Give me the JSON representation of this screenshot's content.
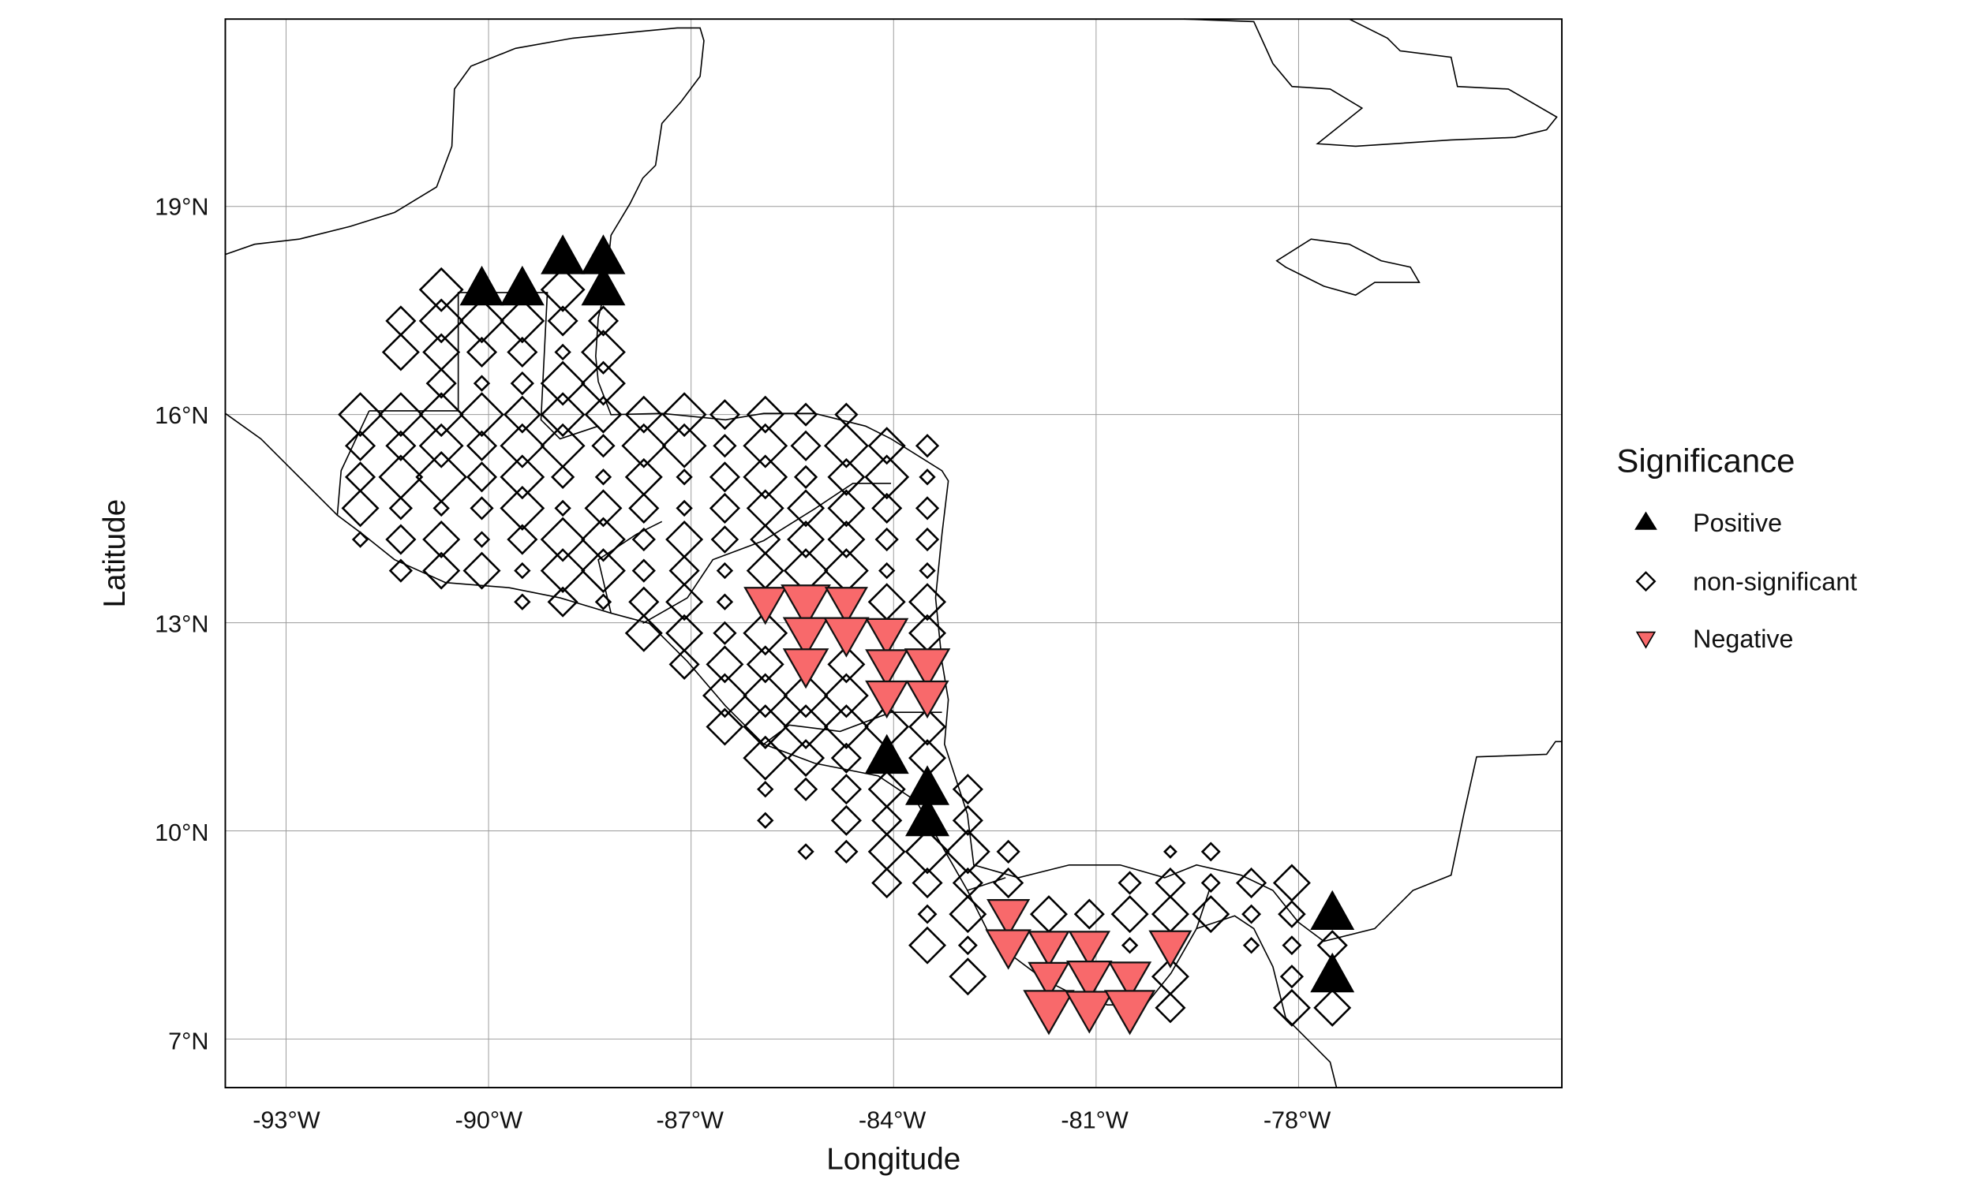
{
  "chart_data": {
    "type": "scatter",
    "title": "",
    "xlabel": "Longitude",
    "ylabel": "Latitude",
    "xlim": [
      -93.9,
      -74.1
    ],
    "ylim": [
      6.3,
      21.7
    ],
    "grid": true,
    "x_ticks": [
      -93,
      -90,
      -87,
      -84,
      -81,
      -78
    ],
    "y_ticks": [
      7,
      10,
      13,
      16,
      19
    ],
    "x_tick_labels": [
      "-93°W",
      "-90°W",
      "-87°W",
      "-84°W",
      "-81°W",
      "-78°W"
    ],
    "y_tick_labels": [
      "7°N",
      "10°N",
      "13°N",
      "16°N",
      "19°N"
    ],
    "legend": {
      "title": "Significance",
      "placement": "right",
      "entries": [
        {
          "key": "P",
          "label": "Positive",
          "color": "#000000",
          "shape": "triangle-up"
        },
        {
          "key": "N",
          "label": "non-significant",
          "color": "#ffffff",
          "shape": "diamond-open"
        },
        {
          "key": "X",
          "label": "Negative",
          "color": "#F8696B",
          "shape": "triangle-down"
        }
      ]
    },
    "point_grid": {
      "lon_start": -91.9,
      "lon_step": 0.6,
      "lat_start": 16.0,
      "lat_step": 0.45
    },
    "point_fields": [
      "lon_index",
      "lat_index",
      "significance",
      "magnitude"
    ],
    "points": [
      [
        2,
        4,
        "N",
        3
      ],
      [
        5,
        4,
        "N",
        3
      ],
      [
        1,
        3,
        "N",
        2
      ],
      [
        2,
        3,
        "N",
        3
      ],
      [
        3,
        3,
        "N",
        3
      ],
      [
        4,
        3,
        "N",
        3
      ],
      [
        5,
        3,
        "N",
        2
      ],
      [
        6,
        3,
        "N",
        2
      ],
      [
        1,
        2,
        "N",
        2.5
      ],
      [
        2,
        2,
        "N",
        2.5
      ],
      [
        3,
        2,
        "N",
        2
      ],
      [
        4,
        2,
        "N",
        2
      ],
      [
        5,
        2,
        "N",
        1
      ],
      [
        6,
        2,
        "N",
        3
      ],
      [
        2,
        1,
        "N",
        2
      ],
      [
        3,
        1,
        "N",
        1
      ],
      [
        4,
        1,
        "N",
        1.5
      ],
      [
        5,
        1,
        "N",
        3
      ],
      [
        6,
        1,
        "N",
        3
      ],
      [
        0,
        0,
        "N",
        3
      ],
      [
        1,
        0,
        "N",
        3
      ],
      [
        2,
        0,
        "N",
        3
      ],
      [
        3,
        0,
        "N",
        3
      ],
      [
        4,
        0,
        "N",
        2.5
      ],
      [
        5,
        0,
        "N",
        3
      ],
      [
        6,
        0,
        "N",
        2.5
      ],
      [
        7,
        0,
        "N",
        2.5
      ],
      [
        8,
        0,
        "N",
        3
      ],
      [
        9,
        0,
        "N",
        2
      ],
      [
        10,
        0,
        "N",
        2.5
      ],
      [
        11,
        0,
        "N",
        1.5
      ],
      [
        12,
        0,
        "N",
        1.5
      ],
      [
        0,
        -1,
        "N",
        2
      ],
      [
        1,
        -1,
        "N",
        2
      ],
      [
        2,
        -1,
        "N",
        3
      ],
      [
        3,
        -1,
        "N",
        2
      ],
      [
        4,
        -1,
        "N",
        3
      ],
      [
        5,
        -1,
        "N",
        3
      ],
      [
        6,
        -1,
        "N",
        1.5
      ],
      [
        7,
        -1,
        "N",
        3
      ],
      [
        8,
        -1,
        "N",
        3
      ],
      [
        9,
        -1,
        "N",
        1.5
      ],
      [
        10,
        -1,
        "N",
        3
      ],
      [
        11,
        -1,
        "N",
        2
      ],
      [
        12,
        -1,
        "N",
        3
      ],
      [
        13,
        -1,
        "N",
        2.5
      ],
      [
        14,
        -1,
        "N",
        1.5
      ],
      [
        0,
        -2,
        "N",
        2
      ],
      [
        1,
        -2,
        "N",
        3
      ],
      [
        2,
        -2,
        "N",
        3.5
      ],
      [
        3,
        -2,
        "N",
        2
      ],
      [
        4,
        -2,
        "N",
        3
      ],
      [
        5,
        -2,
        "N",
        1.5
      ],
      [
        6,
        -2,
        "N",
        1
      ],
      [
        7,
        -2,
        "N",
        2.5
      ],
      [
        8,
        -2,
        "N",
        1
      ],
      [
        9,
        -2,
        "N",
        2
      ],
      [
        10,
        -2,
        "N",
        3
      ],
      [
        11,
        -2,
        "N",
        1.5
      ],
      [
        12,
        -2,
        "N",
        2.5
      ],
      [
        13,
        -2,
        "N",
        3
      ],
      [
        14,
        -2,
        "N",
        1
      ],
      [
        0,
        -3,
        "N",
        2.5
      ],
      [
        1,
        -3,
        "N",
        1.5
      ],
      [
        2,
        -3,
        "N",
        1
      ],
      [
        3,
        -3,
        "N",
        1.5
      ],
      [
        4,
        -3,
        "N",
        3
      ],
      [
        5,
        -3,
        "N",
        1
      ],
      [
        6,
        -3,
        "N",
        2.5
      ],
      [
        7,
        -3,
        "N",
        2
      ],
      [
        8,
        -3,
        "N",
        1
      ],
      [
        9,
        -3,
        "N",
        2
      ],
      [
        10,
        -3,
        "N",
        2.5
      ],
      [
        11,
        -3,
        "N",
        2.5
      ],
      [
        12,
        -3,
        "N",
        2.5
      ],
      [
        13,
        -3,
        "N",
        2
      ],
      [
        14,
        -3,
        "N",
        1.5
      ],
      [
        0,
        -4,
        "N",
        1
      ],
      [
        1,
        -4,
        "N",
        2
      ],
      [
        2,
        -4,
        "N",
        2.5
      ],
      [
        3,
        -4,
        "N",
        1
      ],
      [
        4,
        -4,
        "N",
        2
      ],
      [
        5,
        -4,
        "N",
        3
      ],
      [
        6,
        -4,
        "N",
        3
      ],
      [
        7,
        -4,
        "N",
        1.5
      ],
      [
        8,
        -4,
        "N",
        2.5
      ],
      [
        9,
        -4,
        "N",
        1.8
      ],
      [
        10,
        -4,
        "N",
        2
      ],
      [
        11,
        -4,
        "N",
        2.5
      ],
      [
        12,
        -4,
        "N",
        2.5
      ],
      [
        13,
        -4,
        "N",
        1.5
      ],
      [
        14,
        -4,
        "N",
        1.5
      ],
      [
        1,
        -5,
        "N",
        1.5
      ],
      [
        2,
        -5,
        "N",
        2.5
      ],
      [
        3,
        -5,
        "N",
        2.5
      ],
      [
        4,
        -5,
        "N",
        1
      ],
      [
        5,
        -5,
        "N",
        3
      ],
      [
        6,
        -5,
        "N",
        3
      ],
      [
        7,
        -5,
        "N",
        1.5
      ],
      [
        8,
        -5,
        "N",
        2
      ],
      [
        9,
        -5,
        "N",
        1
      ],
      [
        10,
        -5,
        "N",
        2.5
      ],
      [
        11,
        -5,
        "N",
        3
      ],
      [
        12,
        -5,
        "N",
        3
      ],
      [
        13,
        -5,
        "N",
        1
      ],
      [
        14,
        -5,
        "N",
        1
      ],
      [
        4,
        -6,
        "N",
        1
      ],
      [
        5,
        -6,
        "N",
        2
      ],
      [
        6,
        -6,
        "N",
        1
      ],
      [
        7,
        -6,
        "N",
        2
      ],
      [
        8,
        -6,
        "N",
        2.5
      ],
      [
        9,
        -6,
        "N",
        1
      ],
      [
        13,
        -6,
        "N",
        2.5
      ],
      [
        14,
        -6,
        "N",
        2.5
      ],
      [
        7,
        -7,
        "N",
        2.5
      ],
      [
        8,
        -7,
        "N",
        2.5
      ],
      [
        9,
        -7,
        "N",
        1.5
      ],
      [
        10,
        -7,
        "N",
        3
      ],
      [
        14,
        -7,
        "N",
        2.5
      ],
      [
        8,
        -8,
        "N",
        2
      ],
      [
        9,
        -8,
        "N",
        2.5
      ],
      [
        10,
        -8,
        "N",
        2.5
      ],
      [
        12,
        -8,
        "N",
        2.5
      ],
      [
        9,
        -9,
        "N",
        3
      ],
      [
        10,
        -9,
        "N",
        3
      ],
      [
        11,
        -9,
        "N",
        3
      ],
      [
        12,
        -9,
        "N",
        3
      ],
      [
        9,
        -10,
        "N",
        2.5
      ],
      [
        10,
        -10,
        "N",
        3
      ],
      [
        11,
        -10,
        "N",
        3
      ],
      [
        12,
        -10,
        "N",
        3
      ],
      [
        13,
        -10,
        "N",
        3
      ],
      [
        14,
        -10,
        "N",
        2.5
      ],
      [
        10,
        -11,
        "N",
        3
      ],
      [
        11,
        -11,
        "N",
        2.5
      ],
      [
        12,
        -11,
        "N",
        2
      ],
      [
        14,
        -11,
        "N",
        2.5
      ],
      [
        10,
        -12,
        "N",
        1
      ],
      [
        11,
        -12,
        "N",
        1.5
      ],
      [
        12,
        -12,
        "N",
        2
      ],
      [
        13,
        -12,
        "N",
        2.5
      ],
      [
        15,
        -12,
        "N",
        2
      ],
      [
        10,
        -13,
        "N",
        1
      ],
      [
        12,
        -13,
        "N",
        2
      ],
      [
        13,
        -13,
        "N",
        2
      ],
      [
        15,
        -13,
        "N",
        2
      ],
      [
        11,
        -14,
        "N",
        1
      ],
      [
        12,
        -14,
        "N",
        1.5
      ],
      [
        13,
        -14,
        "N",
        2.5
      ],
      [
        14,
        -14,
        "N",
        3
      ],
      [
        15,
        -14,
        "N",
        3
      ],
      [
        16,
        -14,
        "N",
        1.5
      ],
      [
        20,
        -14,
        "N",
        0.8
      ],
      [
        21,
        -14,
        "N",
        1.2
      ],
      [
        13,
        -15,
        "N",
        2
      ],
      [
        14,
        -15,
        "N",
        2
      ],
      [
        15,
        -15,
        "N",
        2
      ],
      [
        16,
        -15,
        "N",
        2
      ],
      [
        19,
        -15,
        "N",
        1.5
      ],
      [
        20,
        -15,
        "N",
        2
      ],
      [
        21,
        -15,
        "N",
        1.2
      ],
      [
        22,
        -15,
        "N",
        2
      ],
      [
        23,
        -15,
        "N",
        2.5
      ],
      [
        14,
        -16,
        "N",
        1.2
      ],
      [
        15,
        -16,
        "N",
        2.5
      ],
      [
        17,
        -16,
        "N",
        2.5
      ],
      [
        18,
        -16,
        "N",
        2
      ],
      [
        19,
        -16,
        "N",
        2.5
      ],
      [
        20,
        -16,
        "N",
        2.5
      ],
      [
        21,
        -16,
        "N",
        2.5
      ],
      [
        22,
        -16,
        "N",
        1.2
      ],
      [
        23,
        -16,
        "N",
        1.8
      ],
      [
        14,
        -17,
        "N",
        2.5
      ],
      [
        15,
        -17,
        "N",
        1.2
      ],
      [
        19,
        -17,
        "N",
        1
      ],
      [
        22,
        -17,
        "N",
        1
      ],
      [
        23,
        -17,
        "N",
        1.2
      ],
      [
        24,
        -17,
        "N",
        2
      ],
      [
        15,
        -18,
        "N",
        2.5
      ],
      [
        20,
        -18,
        "N",
        2.5
      ],
      [
        23,
        -18,
        "N",
        1.5
      ],
      [
        20,
        -19,
        "N",
        2
      ],
      [
        23,
        -19,
        "N",
        2.5
      ],
      [
        24,
        -19,
        "N",
        2.5
      ],
      [
        10,
        -6,
        "X",
        3
      ],
      [
        11,
        -6,
        "X",
        3.5
      ],
      [
        12,
        -6,
        "X",
        3
      ],
      [
        11,
        -7,
        "X",
        3.2
      ],
      [
        12,
        -7,
        "X",
        3.2
      ],
      [
        13,
        -7,
        "X",
        3
      ],
      [
        11,
        -8,
        "X",
        3.2
      ],
      [
        13,
        -8,
        "X",
        3
      ],
      [
        14,
        -8,
        "X",
        3.2
      ],
      [
        13,
        -9,
        "X",
        3
      ],
      [
        14,
        -9,
        "X",
        3
      ],
      [
        16,
        -16,
        "X",
        3
      ],
      [
        16,
        -17,
        "X",
        3.2
      ],
      [
        17,
        -17,
        "X",
        2.9
      ],
      [
        18,
        -17,
        "X",
        2.9
      ],
      [
        20,
        -17,
        "X",
        3
      ],
      [
        17,
        -18,
        "X",
        2.9
      ],
      [
        18,
        -18,
        "X",
        3.2
      ],
      [
        19,
        -18,
        "X",
        3
      ],
      [
        17,
        -19,
        "X",
        3.6
      ],
      [
        18,
        -19,
        "X",
        3.4
      ],
      [
        19,
        -19,
        "X",
        3.6
      ],
      [
        5,
        5,
        "P",
        3.3
      ],
      [
        6,
        5,
        "P",
        3.3
      ],
      [
        3,
        4,
        "P",
        3.3
      ],
      [
        4,
        4,
        "P",
        3.3
      ],
      [
        6,
        4,
        "P",
        3.3
      ],
      [
        13,
        -11,
        "P",
        3.3
      ],
      [
        14,
        -12,
        "P",
        3.3
      ],
      [
        14,
        -13,
        "P",
        3.3
      ],
      [
        24,
        -16,
        "P",
        3.3
      ],
      [
        24,
        -18,
        "P",
        3.3
      ]
    ]
  }
}
